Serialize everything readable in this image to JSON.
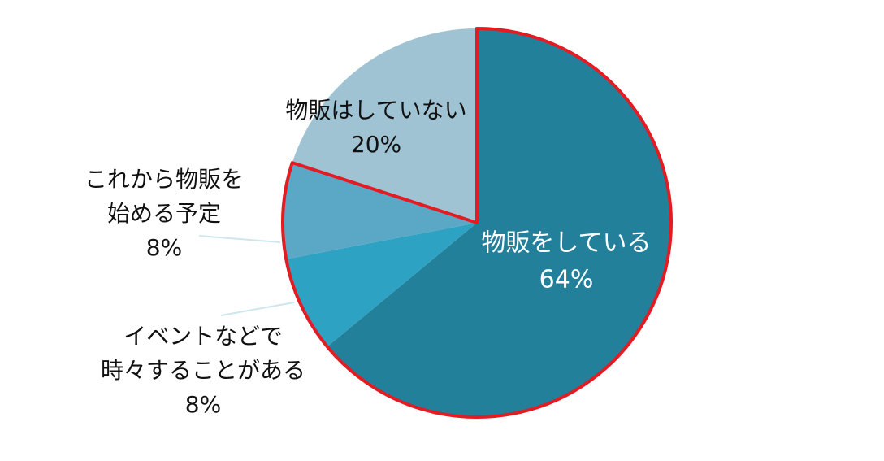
{
  "chart_data": {
    "type": "pie",
    "categories": [
      [
        "物販をしている"
      ],
      [
        "イベントなどで",
        "時々することがある"
      ],
      [
        "これから物販を",
        "始める予定"
      ],
      [
        "物販はしていない"
      ]
    ],
    "values": [
      64,
      8,
      8,
      20
    ],
    "value_labels": [
      "64%",
      "8%",
      "8%",
      "20%"
    ],
    "colors": [
      "#23809b",
      "#2ea2c2",
      "#5aa7c6",
      "#9fc3d3"
    ],
    "highlight": [
      0,
      1,
      2
    ],
    "highlight_color": "#e31b23"
  }
}
